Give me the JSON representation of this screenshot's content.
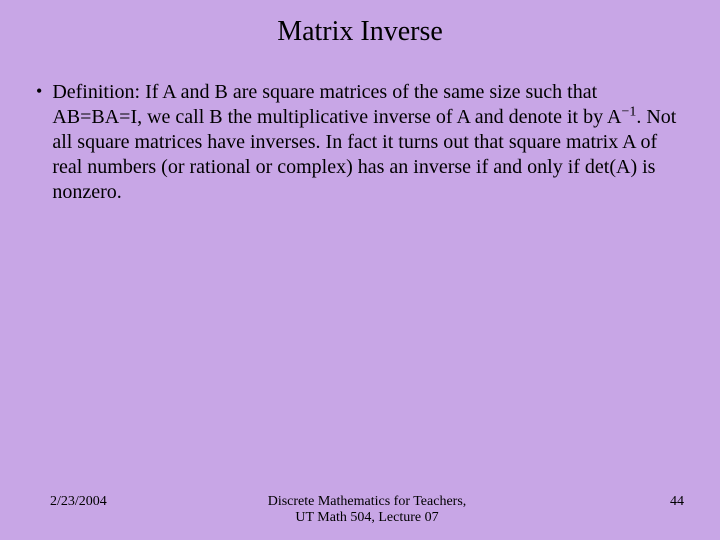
{
  "colors": {
    "background": "#c8a6e6",
    "text": "#000000"
  },
  "typography": {
    "family": "Times New Roman",
    "title_fontsize": 28,
    "body_fontsize": 20,
    "footer_fontsize": 14
  },
  "title": "Matrix Inverse",
  "bullet": {
    "marker": "•",
    "text_pre": "Definition: If A and B are square matrices of the same size such that AB=BA=I, we call B the multiplicative inverse of A and denote it by A",
    "superscript": "−1",
    "text_post": ". Not all square matrices have inverses. In fact it turns out that square matrix A of real numbers (or rational or complex) has an inverse if and only if det(A) is nonzero."
  },
  "footer": {
    "date": "2/23/2004",
    "center_line1": "Discrete Mathematics for Teachers,",
    "center_line2": "UT Math 504, Lecture 07",
    "page": "44"
  }
}
